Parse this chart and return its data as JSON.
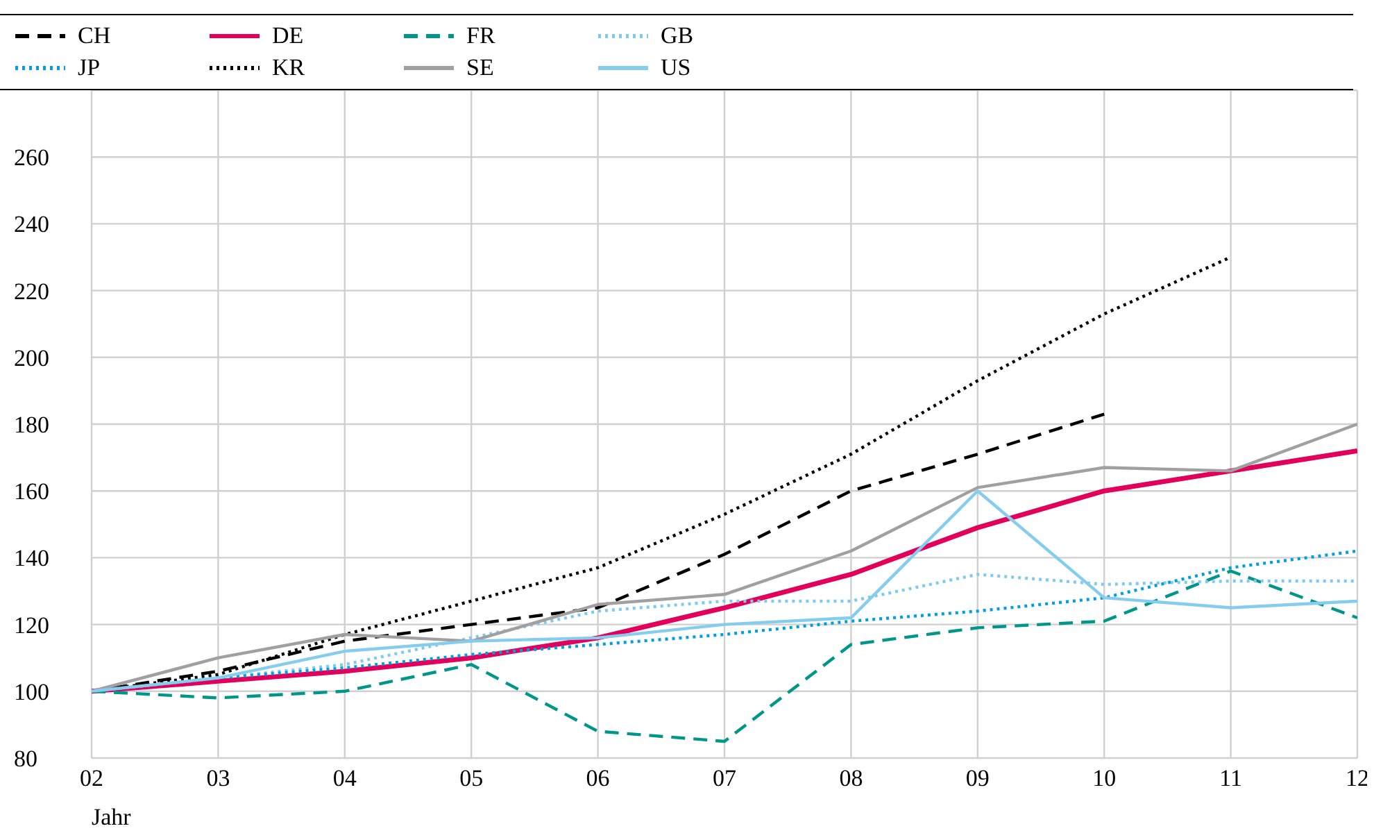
{
  "chart_data": {
    "type": "line",
    "xlabel": "Jahr",
    "categories": [
      "02",
      "03",
      "04",
      "05",
      "06",
      "07",
      "08",
      "09",
      "10",
      "11",
      "12"
    ],
    "ylim": [
      80,
      280
    ],
    "yticks": [
      80,
      100,
      120,
      140,
      160,
      180,
      200,
      220,
      240,
      260
    ],
    "grid": true,
    "legend": "top",
    "marker": "none",
    "series": [
      {
        "name": "CH",
        "color": "#000000",
        "line_style": "dashed",
        "values": [
          100,
          106,
          115,
          120,
          125,
          141,
          160,
          171,
          183,
          null,
          null
        ]
      },
      {
        "name": "DE",
        "color": "#e2005a",
        "line_style": "solid",
        "values": [
          100,
          103,
          106,
          110,
          116,
          125,
          135,
          149,
          160,
          166,
          172
        ]
      },
      {
        "name": "FR",
        "color": "#00968a",
        "line_style": "dashed",
        "values": [
          100,
          98,
          100,
          108,
          88,
          85,
          114,
          119,
          121,
          136,
          122
        ]
      },
      {
        "name": "GB",
        "color": "#7fcbf0",
        "line_style": "dotted",
        "values": [
          100,
          104,
          108,
          116,
          124,
          127,
          127,
          135,
          132,
          133,
          133
        ]
      },
      {
        "name": "JP",
        "color": "#009fe3",
        "line_style": "dotted",
        "values": [
          100,
          104,
          107,
          111,
          114,
          117,
          121,
          124,
          128,
          137,
          142
        ]
      },
      {
        "name": "KR",
        "color": "#000000",
        "line_style": "dotted",
        "values": [
          100,
          105,
          117,
          127,
          137,
          153,
          171,
          193,
          213,
          230,
          null
        ]
      },
      {
        "name": "SE",
        "color": "#a0a0a0",
        "line_style": "solid",
        "values": [
          100,
          110,
          117,
          115,
          126,
          129,
          142,
          161,
          167,
          166,
          180
        ]
      },
      {
        "name": "US",
        "color": "#84cdee",
        "line_style": "solid",
        "values": [
          100,
          104,
          112,
          115,
          116,
          120,
          122,
          160,
          128,
          125,
          127
        ]
      }
    ]
  }
}
